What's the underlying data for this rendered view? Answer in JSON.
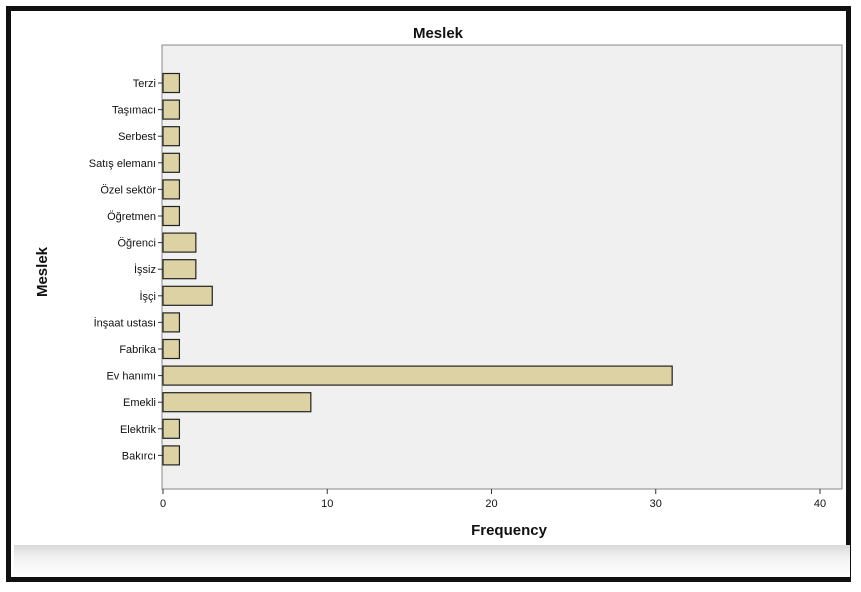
{
  "chart_data": {
    "type": "bar",
    "orientation": "horizontal",
    "title": "Meslek",
    "xlabel": "Frequency",
    "ylabel": "Meslek",
    "categories": [
      "Terzi",
      "Taşımacı",
      "Serbest",
      "Satış elemanı",
      "Özel sektör",
      "Öğretmen",
      "Öğrenci",
      "İşsiz",
      "İşçi",
      "İnşaat ustası",
      "Fabrika",
      "Ev hanımı",
      "Emekli",
      "Elektrik",
      "Bakırcı"
    ],
    "values": [
      1,
      1,
      1,
      1,
      1,
      1,
      2,
      2,
      3,
      1,
      1,
      31,
      9,
      1,
      1
    ],
    "xlim": [
      0,
      40
    ],
    "xticks": [
      0,
      10,
      20,
      30,
      40
    ],
    "grid": false,
    "colors": {
      "bar": "#ddd2a3",
      "bar_edge": "#222222",
      "plot_bg": "#f0f0f0"
    }
  }
}
